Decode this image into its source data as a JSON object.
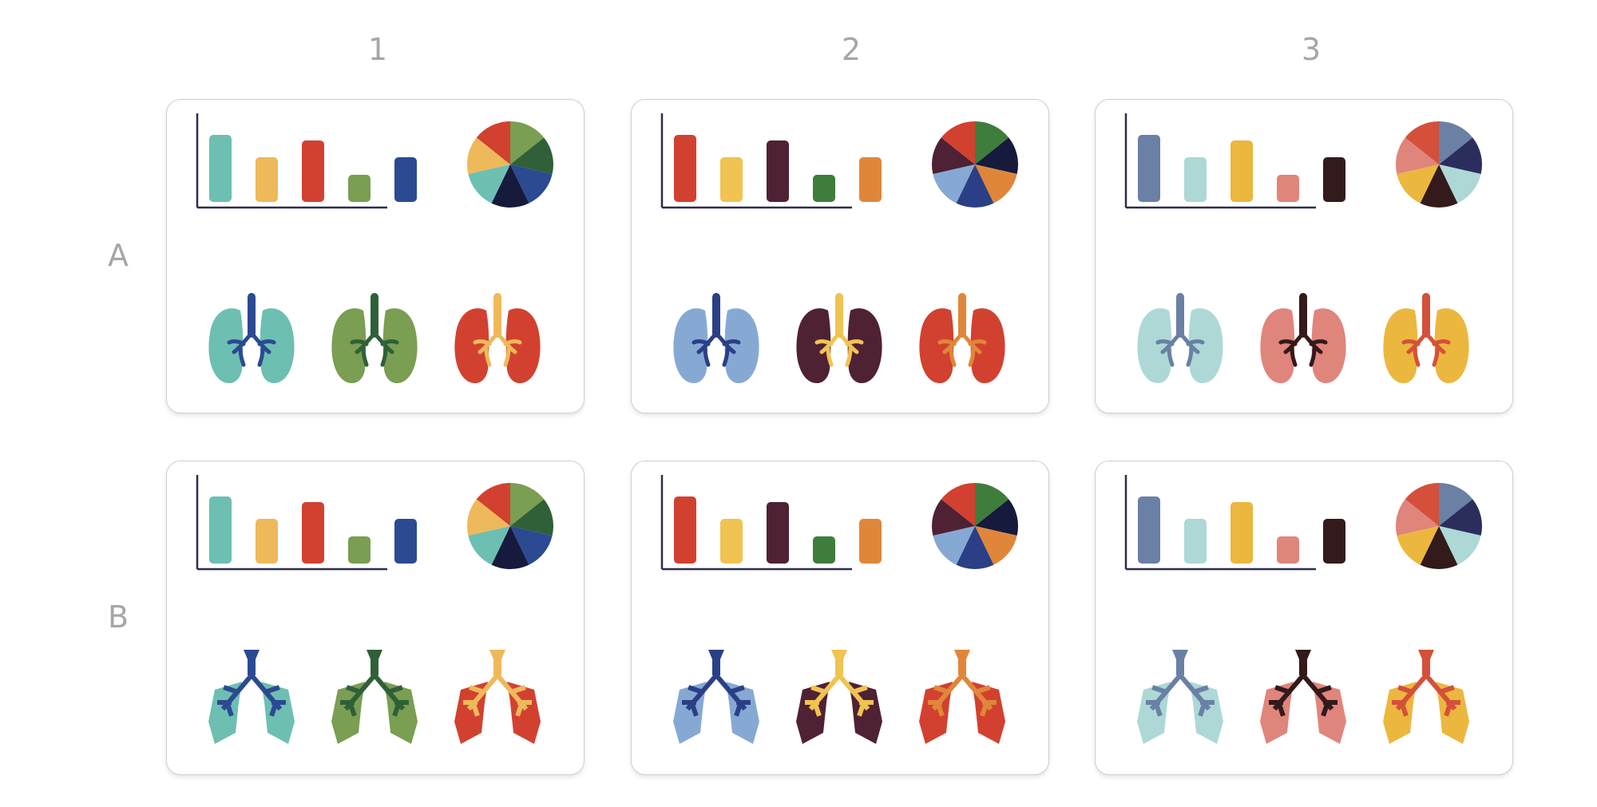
{
  "columns": [
    {
      "label": "1"
    },
    {
      "label": "2"
    },
    {
      "label": "3"
    }
  ],
  "rows": [
    {
      "label": "A",
      "style": "rounded"
    },
    {
      "label": "B",
      "style": "angular"
    }
  ],
  "palettes": [
    {
      "bars": [
        {
          "value": 84,
          "color": "#6dbfb2"
        },
        {
          "value": 56,
          "color": "#eeb95a"
        },
        {
          "value": 77,
          "color": "#d2412f"
        },
        {
          "value": 34,
          "color": "#7a9e52"
        },
        {
          "value": 56,
          "color": "#2b4a92"
        }
      ],
      "pie": [
        "#7a9e52",
        "#2f6038",
        "#2b4a92",
        "#161a3c",
        "#6dbfb2",
        "#eeb95a",
        "#d2412f"
      ],
      "lungs": [
        {
          "lung": "#6dbfb2",
          "airway": "#2b4a92"
        },
        {
          "lung": "#7a9e52",
          "airway": "#2f6038"
        },
        {
          "lung": "#d2412f",
          "airway": "#eeb95a"
        }
      ]
    },
    {
      "bars": [
        {
          "value": 84,
          "color": "#d2412f"
        },
        {
          "value": 56,
          "color": "#f0c352"
        },
        {
          "value": 77,
          "color": "#4f2134"
        },
        {
          "value": 34,
          "color": "#3f7d3c"
        },
        {
          "value": 56,
          "color": "#e0863a"
        }
      ],
      "pie": [
        "#3f7d3c",
        "#161a3c",
        "#e0863a",
        "#2b3f86",
        "#86a9d4",
        "#4f2134",
        "#d2412f"
      ],
      "lungs": [
        {
          "lung": "#86a9d4",
          "airway": "#2b3f86"
        },
        {
          "lung": "#4f2134",
          "airway": "#f0c352"
        },
        {
          "lung": "#d2412f",
          "airway": "#e0863a"
        }
      ]
    },
    {
      "bars": [
        {
          "value": 84,
          "color": "#6a80a4"
        },
        {
          "value": 56,
          "color": "#add8d6"
        },
        {
          "value": 77,
          "color": "#ecb73e"
        },
        {
          "value": 34,
          "color": "#e0857c"
        },
        {
          "value": 56,
          "color": "#331a1b"
        }
      ],
      "pie": [
        "#6a80a4",
        "#2b2e5c",
        "#add8d6",
        "#331a1b",
        "#ecb73e",
        "#e0857c",
        "#d4503a"
      ],
      "lungs": [
        {
          "lung": "#add8d6",
          "airway": "#6a80a4"
        },
        {
          "lung": "#e0857c",
          "airway": "#331a1b"
        },
        {
          "lung": "#ecb73e",
          "airway": "#d4503a"
        }
      ]
    }
  ]
}
